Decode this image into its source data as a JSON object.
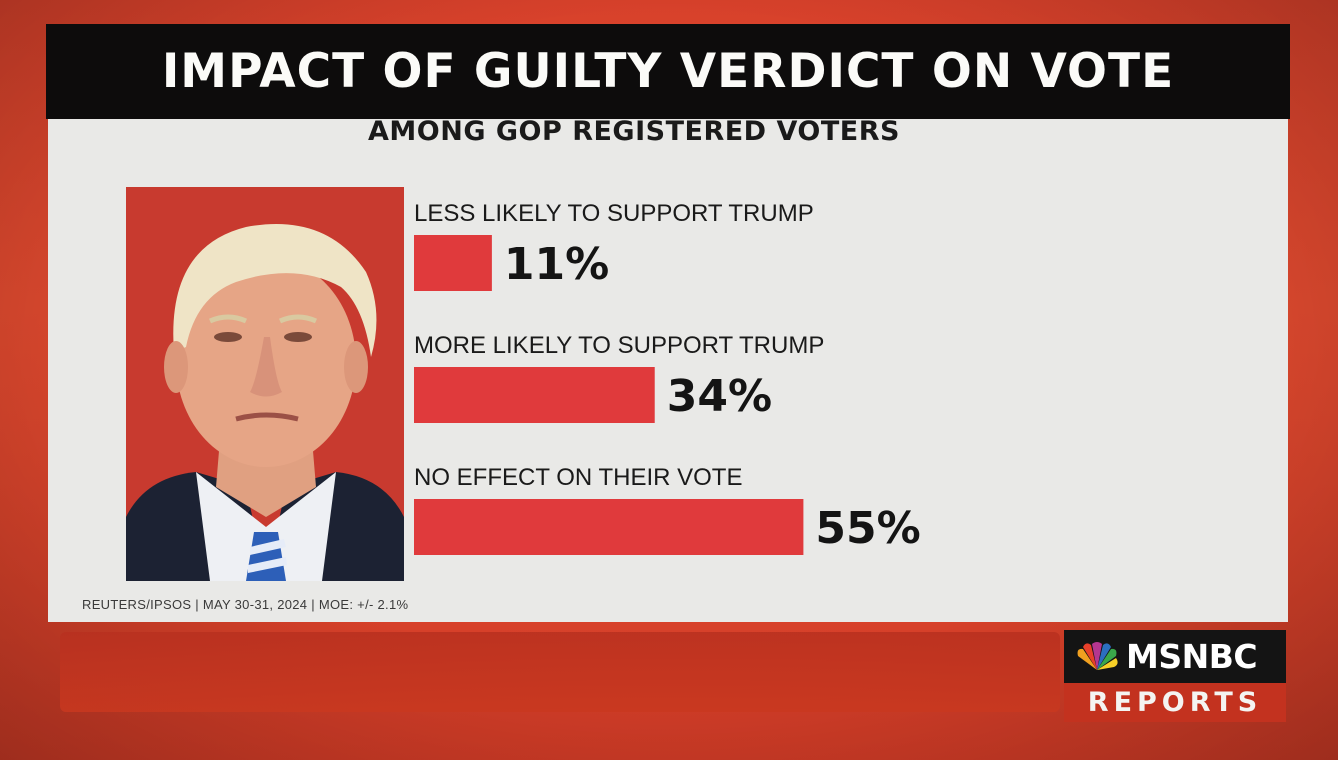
{
  "header": {
    "title": "IMPACT OF GUILTY VERDICT ON VOTE",
    "subtitle": "AMONG GOP REGISTERED VOTERS"
  },
  "source_note": "REUTERS/IPSOS | MAY 30-31, 2024 | MOE: +/- 2.1%",
  "brand": {
    "name": "MSNBC",
    "program": "REPORTS",
    "icon": "nbc-peacock-icon"
  },
  "photo": {
    "icon": "portrait-photo"
  },
  "colors": {
    "background": "#d8412b",
    "bar": "#e03a3c",
    "title_bar": "#0d0c0c",
    "panel": "#e9e9e7",
    "text": "#1a1a1a"
  },
  "chart_data": {
    "type": "bar",
    "orientation": "horizontal",
    "title": "IMPACT OF GUILTY VERDICT ON VOTE",
    "subtitle": "AMONG GOP REGISTERED VOTERS",
    "categories": [
      "LESS LIKELY TO SUPPORT TRUMP",
      "MORE LIKELY TO SUPPORT TRUMP",
      "NO EFFECT ON THEIR VOTE"
    ],
    "values": [
      11,
      34,
      55
    ],
    "value_labels": [
      "11%",
      "34%",
      "55%"
    ],
    "unit": "%",
    "xlim": [
      0,
      100
    ],
    "grid": false,
    "legend": "none"
  }
}
